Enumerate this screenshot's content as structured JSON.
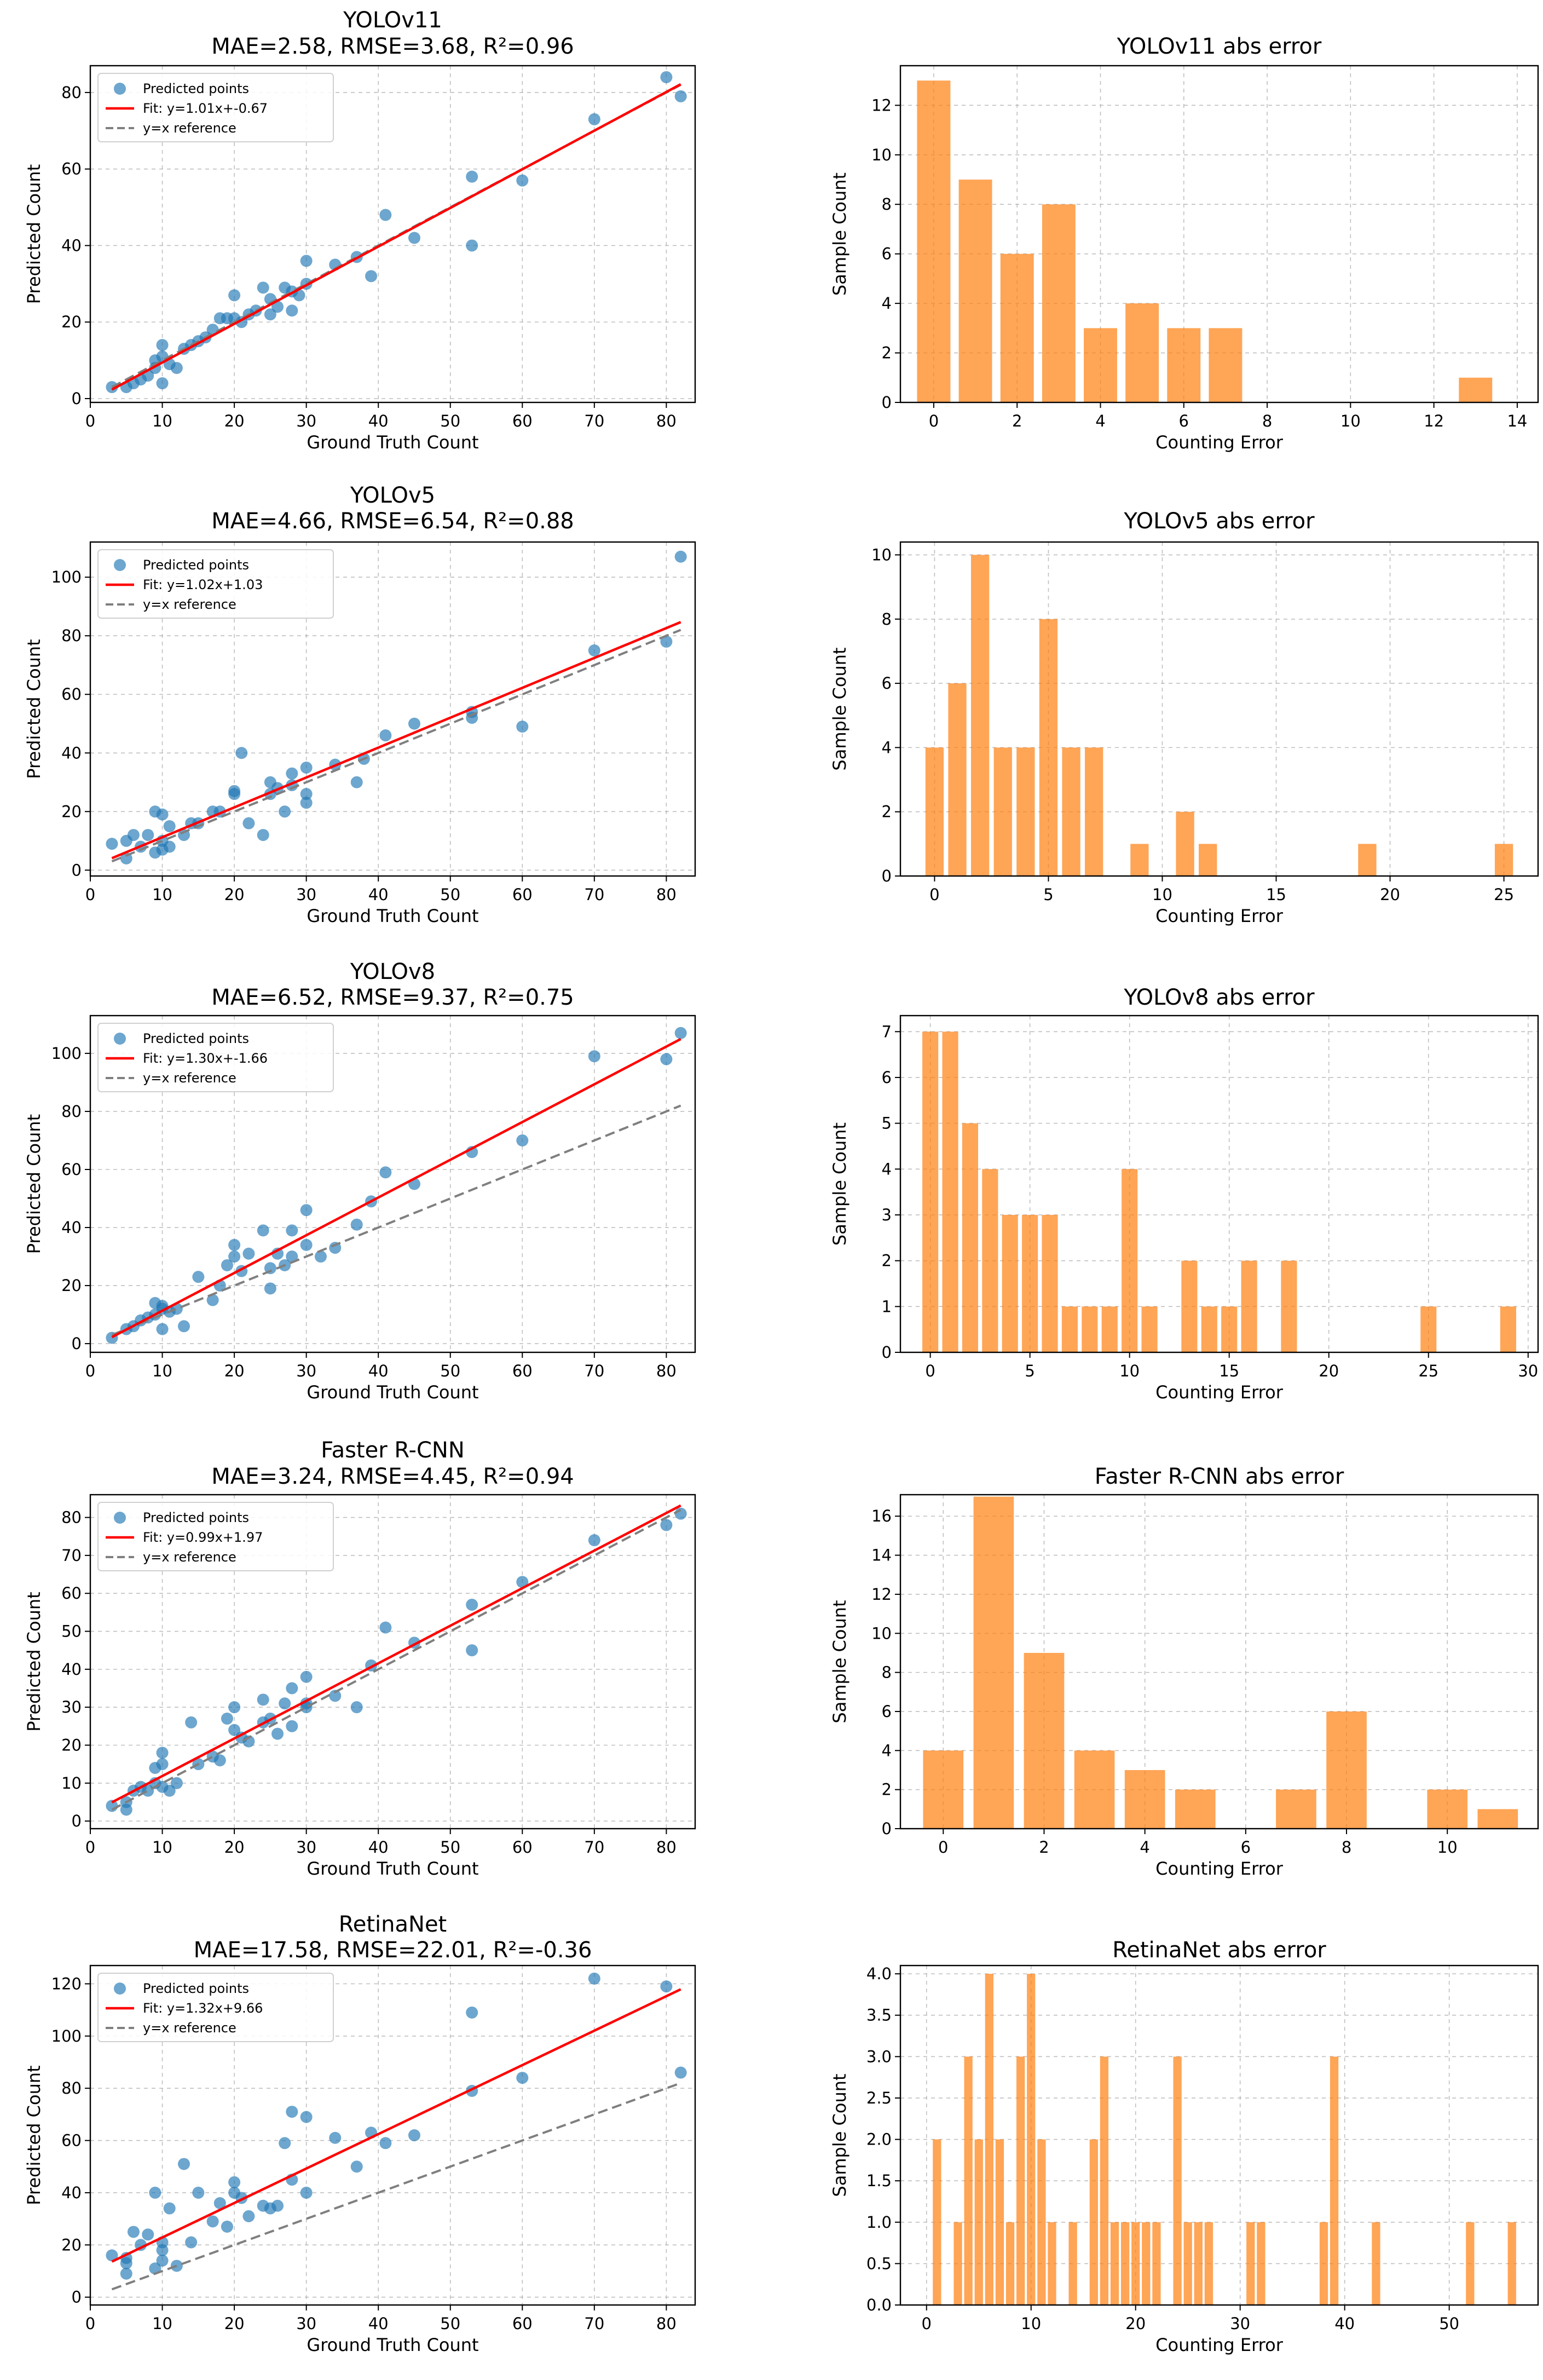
{
  "chart_data": [
    {
      "type": "scatter",
      "title": "YOLOv11",
      "subtitle": "MAE=2.58, RMSE=3.68, R²=0.96",
      "xlabel": "Ground Truth Count",
      "ylabel": "Predicted Count",
      "xlim": [
        0,
        84
      ],
      "ylim": [
        -1,
        87
      ],
      "xticks": [
        0,
        10,
        20,
        30,
        40,
        50,
        60,
        70,
        80
      ],
      "yticks": [
        0,
        20,
        40,
        60,
        80
      ],
      "fit": {
        "slope": 1.01,
        "intercept": -0.67
      },
      "legend": {
        "position": "top-left",
        "points": "Predicted points",
        "fit": "Fit: y=1.01x+-0.67",
        "ref": "y=x reference"
      },
      "x": [
        3,
        5,
        6,
        7,
        8,
        9,
        9,
        10,
        10,
        10,
        11,
        12,
        13,
        14,
        15,
        16,
        17,
        18,
        19,
        20,
        20,
        21,
        22,
        23,
        24,
        25,
        25,
        26,
        27,
        28,
        28,
        29,
        30,
        30,
        34,
        37,
        39,
        41,
        45,
        53,
        53,
        60,
        70,
        80,
        82
      ],
      "y": [
        3,
        3,
        4,
        5,
        6,
        8,
        10,
        4,
        11,
        14,
        9,
        8,
        13,
        14,
        15,
        16,
        18,
        21,
        21,
        21,
        27,
        20,
        22,
        23,
        29,
        26,
        22,
        24,
        29,
        23,
        28,
        27,
        30,
        36,
        35,
        37,
        32,
        48,
        42,
        40,
        58,
        57,
        73,
        84,
        79
      ]
    },
    {
      "type": "bar",
      "title": "YOLOv11 abs error",
      "xlabel": "Counting Error",
      "ylabel": "Sample Count",
      "xlim": [
        -0.8,
        14.5
      ],
      "ylim": [
        0,
        13.6
      ],
      "xticks": [
        0,
        2,
        4,
        6,
        8,
        10,
        12,
        14
      ],
      "yticks": [
        0,
        2,
        4,
        6,
        8,
        10,
        12
      ],
      "bar_width": 0.8,
      "errors": [
        0,
        1,
        2,
        3,
        4,
        5,
        6,
        7,
        13
      ],
      "counts": [
        13,
        9,
        6,
        8,
        3,
        4,
        3,
        3,
        1
      ]
    },
    {
      "type": "scatter",
      "title": "YOLOv5",
      "subtitle": "MAE=4.66, RMSE=6.54, R²=0.88",
      "xlabel": "Ground Truth Count",
      "ylabel": "Predicted Count",
      "xlim": [
        0,
        84
      ],
      "ylim": [
        -2,
        112
      ],
      "xticks": [
        0,
        10,
        20,
        30,
        40,
        50,
        60,
        70,
        80
      ],
      "yticks": [
        0,
        20,
        40,
        60,
        80,
        100
      ],
      "fit": {
        "slope": 1.02,
        "intercept": 1.03
      },
      "legend": {
        "position": "top-left",
        "points": "Predicted points",
        "fit": "Fit: y=1.02x+1.03",
        "ref": "y=x reference"
      },
      "x": [
        3,
        5,
        5,
        6,
        7,
        8,
        9,
        9,
        10,
        10,
        10,
        11,
        11,
        13,
        14,
        15,
        17,
        18,
        20,
        20,
        21,
        22,
        24,
        25,
        25,
        26,
        27,
        28,
        28,
        30,
        30,
        30,
        34,
        37,
        38,
        41,
        45,
        53,
        53,
        60,
        70,
        80,
        82
      ],
      "y": [
        9,
        4,
        10,
        12,
        8,
        12,
        6,
        20,
        7,
        10,
        19,
        8,
        15,
        12,
        16,
        16,
        20,
        20,
        26,
        27,
        40,
        16,
        12,
        30,
        26,
        28,
        20,
        29,
        33,
        23,
        26,
        35,
        36,
        30,
        38,
        46,
        50,
        52,
        54,
        49,
        75,
        78,
        107
      ]
    },
    {
      "type": "bar",
      "title": "YOLOv5 abs error",
      "xlabel": "Counting Error",
      "ylabel": "Sample Count",
      "xlim": [
        -1.5,
        26.5
      ],
      "ylim": [
        0,
        10.4
      ],
      "xticks": [
        0,
        5,
        10,
        15,
        20,
        25
      ],
      "yticks": [
        0,
        2,
        4,
        6,
        8,
        10
      ],
      "bar_width": 0.8,
      "errors": [
        0,
        1,
        2,
        3,
        4,
        5,
        6,
        7,
        9,
        11,
        12,
        19,
        25
      ],
      "counts": [
        4,
        6,
        10,
        4,
        4,
        8,
        4,
        4,
        1,
        2,
        1,
        1,
        1
      ]
    },
    {
      "type": "scatter",
      "title": "YOLOv8",
      "subtitle": "MAE=6.52, RMSE=9.37, R²=0.75",
      "xlabel": "Ground Truth Count",
      "ylabel": "Predicted Count",
      "xlim": [
        0,
        84
      ],
      "ylim": [
        -3,
        113
      ],
      "xticks": [
        0,
        10,
        20,
        30,
        40,
        50,
        60,
        70,
        80
      ],
      "yticks": [
        0,
        20,
        40,
        60,
        80,
        100
      ],
      "fit": {
        "slope": 1.3,
        "intercept": -1.66
      },
      "legend": {
        "position": "top-left",
        "points": "Predicted points",
        "fit": "Fit: y=1.30x+-1.66",
        "ref": "y=x reference"
      },
      "x": [
        3,
        5,
        6,
        7,
        8,
        9,
        9,
        10,
        10,
        10,
        11,
        12,
        13,
        15,
        17,
        18,
        19,
        20,
        20,
        21,
        22,
        24,
        25,
        25,
        26,
        27,
        28,
        28,
        30,
        30,
        32,
        34,
        37,
        39,
        41,
        45,
        53,
        60,
        70,
        80,
        82
      ],
      "y": [
        2,
        5,
        6,
        8,
        9,
        10,
        14,
        5,
        12,
        13,
        11,
        12,
        6,
        23,
        15,
        20,
        27,
        30,
        34,
        25,
        31,
        39,
        19,
        26,
        31,
        27,
        39,
        30,
        46,
        34,
        30,
        33,
        41,
        49,
        59,
        55,
        66,
        70,
        99,
        98,
        107
      ]
    },
    {
      "type": "bar",
      "title": "YOLOv8 abs error",
      "xlabel": "Counting Error",
      "ylabel": "Sample Count",
      "xlim": [
        -1.5,
        30.5
      ],
      "ylim": [
        0,
        7.35
      ],
      "xticks": [
        0,
        5,
        10,
        15,
        20,
        25,
        30
      ],
      "yticks": [
        0,
        1,
        2,
        3,
        4,
        5,
        6,
        7
      ],
      "bar_width": 0.8,
      "errors": [
        0,
        1,
        2,
        3,
        4,
        5,
        6,
        7,
        8,
        9,
        10,
        11,
        13,
        14,
        15,
        16,
        18,
        25,
        29
      ],
      "counts": [
        7,
        7,
        5,
        4,
        3,
        3,
        3,
        1,
        1,
        1,
        4,
        1,
        2,
        1,
        1,
        2,
        2,
        1,
        1
      ]
    },
    {
      "type": "scatter",
      "title": "Faster R-CNN",
      "subtitle": "MAE=3.24, RMSE=4.45, R²=0.94",
      "xlabel": "Ground Truth Count",
      "ylabel": "Predicted Count",
      "xlim": [
        0,
        84
      ],
      "ylim": [
        -2,
        86
      ],
      "xticks": [
        0,
        10,
        20,
        30,
        40,
        50,
        60,
        70,
        80
      ],
      "yticks": [
        0,
        10,
        20,
        30,
        40,
        50,
        60,
        70,
        80
      ],
      "fit": {
        "slope": 0.99,
        "intercept": 1.97
      },
      "legend": {
        "position": "top-left",
        "points": "Predicted points",
        "fit": "Fit: y=0.99x+1.97",
        "ref": "y=x reference"
      },
      "x": [
        3,
        5,
        5,
        6,
        7,
        8,
        9,
        9,
        10,
        10,
        10,
        11,
        12,
        14,
        15,
        17,
        18,
        19,
        20,
        20,
        21,
        22,
        24,
        24,
        25,
        26,
        27,
        28,
        28,
        30,
        30,
        30,
        34,
        37,
        39,
        41,
        45,
        53,
        53,
        60,
        70,
        80,
        82
      ],
      "y": [
        4,
        3,
        5,
        8,
        9,
        8,
        14,
        10,
        9,
        15,
        18,
        8,
        10,
        26,
        15,
        17,
        16,
        27,
        24,
        30,
        22,
        21,
        26,
        32,
        27,
        23,
        31,
        35,
        25,
        31,
        38,
        30,
        33,
        30,
        41,
        51,
        47,
        45,
        57,
        63,
        74,
        78,
        81
      ]
    },
    {
      "type": "bar",
      "title": "Faster R-CNN abs error",
      "xlabel": "Counting Error",
      "ylabel": "Sample Count",
      "xlim": [
        -0.85,
        11.8
      ],
      "ylim": [
        0,
        17.1
      ],
      "xticks": [
        0,
        2,
        4,
        6,
        8,
        10
      ],
      "yticks": [
        0,
        2,
        4,
        6,
        8,
        10,
        12,
        14,
        16
      ],
      "bar_width": 0.8,
      "errors": [
        0,
        1,
        2,
        3,
        4,
        5,
        7,
        8,
        10,
        11
      ],
      "counts": [
        4,
        17,
        9,
        4,
        3,
        2,
        2,
        6,
        2,
        1
      ]
    },
    {
      "type": "scatter",
      "title": "RetinaNet",
      "subtitle": "MAE=17.58, RMSE=22.01, R²=-0.36",
      "xlabel": "Ground Truth Count",
      "ylabel": "Predicted Count",
      "xlim": [
        0,
        84
      ],
      "ylim": [
        -3,
        127
      ],
      "xticks": [
        0,
        10,
        20,
        30,
        40,
        50,
        60,
        70,
        80
      ],
      "yticks": [
        0,
        20,
        40,
        60,
        80,
        100,
        120
      ],
      "fit": {
        "slope": 1.32,
        "intercept": 9.66
      },
      "legend": {
        "position": "top-left",
        "points": "Predicted points",
        "fit": "Fit: y=1.32x+9.66",
        "ref": "y=x reference"
      },
      "x": [
        3,
        5,
        5,
        5,
        6,
        7,
        8,
        9,
        9,
        10,
        10,
        10,
        11,
        12,
        13,
        14,
        15,
        17,
        18,
        19,
        20,
        20,
        21,
        22,
        24,
        25,
        26,
        27,
        28,
        28,
        30,
        30,
        34,
        37,
        39,
        41,
        45,
        53,
        53,
        60,
        70,
        80,
        82
      ],
      "y": [
        16,
        9,
        13,
        15,
        25,
        20,
        24,
        11,
        40,
        14,
        18,
        21,
        34,
        12,
        51,
        21,
        40,
        29,
        36,
        27,
        40,
        44,
        38,
        31,
        35,
        34,
        35,
        59,
        71,
        45,
        40,
        69,
        61,
        50,
        63,
        59,
        62,
        79,
        109,
        84,
        122,
        119,
        86
      ]
    },
    {
      "type": "bar",
      "title": "RetinaNet abs error",
      "xlabel": "Counting Error",
      "ylabel": "Sample Count",
      "xlim": [
        -2.5,
        58.5
      ],
      "ylim": [
        0,
        4.1
      ],
      "xticks": [
        0,
        10,
        20,
        30,
        40,
        50
      ],
      "yticks": [
        0.0,
        0.5,
        1.0,
        1.5,
        2.0,
        2.5,
        3.0,
        3.5,
        4.0
      ],
      "bar_width": 0.8,
      "errors": [
        1,
        3,
        4,
        5,
        6,
        7,
        8,
        9,
        10,
        11,
        12,
        14,
        16,
        17,
        18,
        19,
        20,
        21,
        22,
        24,
        25,
        26,
        27,
        31,
        32,
        38,
        39,
        43,
        52,
        56
      ],
      "counts": [
        2,
        1,
        3,
        2,
        4,
        2,
        1,
        3,
        4,
        2,
        1,
        1,
        2,
        3,
        1,
        1,
        1,
        1,
        1,
        3,
        1,
        1,
        1,
        1,
        1,
        1,
        3,
        1,
        1,
        1
      ]
    }
  ]
}
